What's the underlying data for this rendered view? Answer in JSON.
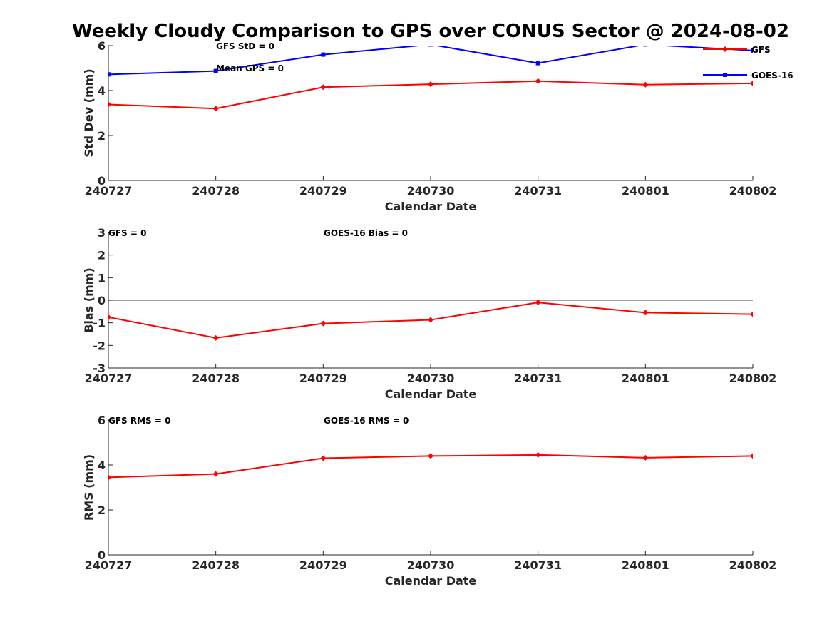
{
  "figure": {
    "title": "Weekly Cloudy Comparison to GPS over CONUS Sector @ 2024-08-02"
  },
  "chart_data": [
    {
      "type": "line",
      "categories": [
        "240727",
        "240728",
        "240729",
        "240730",
        "240731",
        "240801",
        "240802"
      ],
      "xlabel": "Calendar Date",
      "ylabel": "Std Dev (mm)",
      "ylim": [
        0,
        6
      ],
      "yticks": [
        0,
        2,
        4,
        6
      ],
      "ytick_labels": [
        "0",
        "2",
        "4",
        "6"
      ],
      "grid": false,
      "legend": "top-right",
      "series": [
        {
          "name": "GFS",
          "color": "#ff0000",
          "marker": "diamond",
          "values": [
            3.38,
            3.2,
            4.15,
            4.28,
            4.42,
            4.26,
            4.32
          ]
        },
        {
          "name": "GOES-16",
          "color": "#0000ff",
          "marker": "square",
          "values": [
            4.72,
            4.87,
            5.6,
            6.05,
            5.22,
            6.05,
            5.78
          ]
        }
      ],
      "annotations": [
        "GFS StD = 0",
        "Mean GPS = 0"
      ]
    },
    {
      "type": "line",
      "categories": [
        "240727",
        "240728",
        "240729",
        "240730",
        "240731",
        "240801",
        "240802"
      ],
      "xlabel": "Calendar Date",
      "ylabel": "Bias (mm)",
      "ylim": [
        -3,
        3
      ],
      "yticks": [
        -3,
        -2,
        -1,
        0,
        1,
        2,
        3
      ],
      "ytick_labels": [
        "-3",
        "-2",
        "-1",
        "0",
        "1",
        "2",
        "3"
      ],
      "grid": false,
      "reference_line": 0,
      "series": [
        {
          "color": "#ff0000",
          "marker": "diamond",
          "values": [
            -0.75,
            -1.67,
            -1.03,
            -0.87,
            -0.1,
            -0.55,
            -0.62
          ]
        }
      ],
      "annotations": [
        "GFS = 0",
        "GOES-16 Bias  = 0"
      ]
    },
    {
      "type": "line",
      "categories": [
        "240727",
        "240728",
        "240729",
        "240730",
        "240731",
        "240801",
        "240802"
      ],
      "xlabel": "Calendar Date",
      "ylabel": "RMS (mm)",
      "ylim": [
        0,
        6
      ],
      "yticks": [
        0,
        2,
        4,
        6
      ],
      "ytick_labels": [
        "0",
        "2",
        "4",
        "6"
      ],
      "grid": false,
      "series": [
        {
          "color": "#ff0000",
          "marker": "diamond",
          "values": [
            3.45,
            3.6,
            4.3,
            4.4,
            4.45,
            4.32,
            4.4
          ]
        }
      ],
      "annotations": [
        "GFS RMS = 0",
        "GOES-16 RMS = 0"
      ]
    }
  ]
}
